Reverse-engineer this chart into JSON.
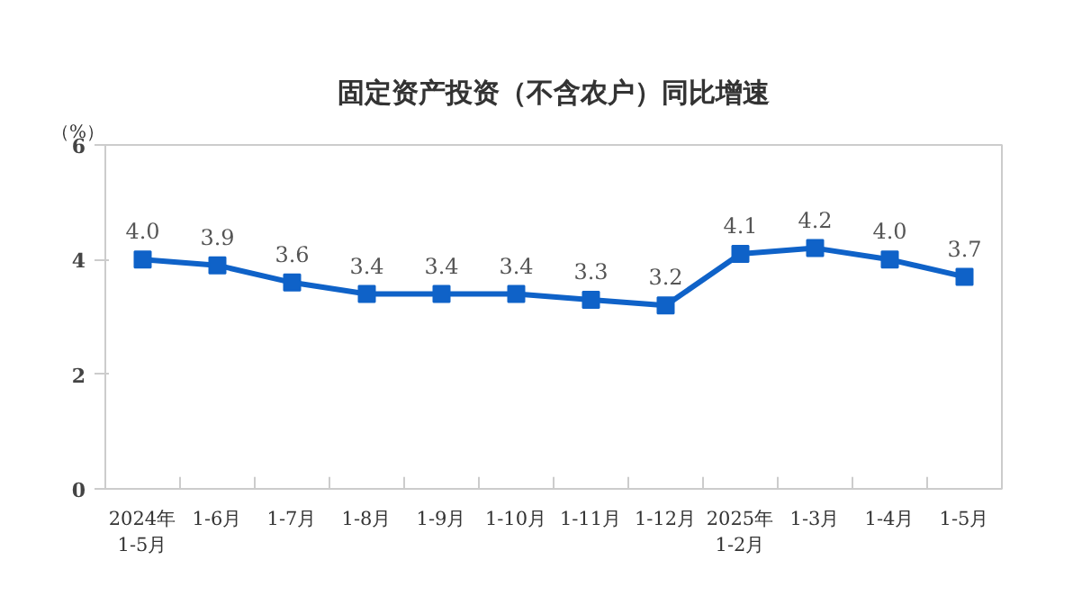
{
  "chart_data": {
    "type": "line",
    "title": "固定资产投资（不含农户）同比增速",
    "ylabel": "（%）",
    "categories": [
      "2024年\n1-5月",
      "1-6月",
      "1-7月",
      "1-8月",
      "1-9月",
      "1-10月",
      "1-11月",
      "1-12月",
      "2025年\n1-2月",
      "1-3月",
      "1-4月",
      "1-5月"
    ],
    "series": [
      {
        "color": "#0f62c8",
        "values": [
          4.0,
          3.9,
          3.6,
          3.4,
          3.4,
          3.4,
          3.3,
          3.2,
          4.1,
          4.2,
          4.0,
          3.7
        ],
        "value_labels": [
          "4.0",
          "3.9",
          "3.6",
          "3.4",
          "3.4",
          "3.4",
          "3.3",
          "3.2",
          "4.1",
          "4.2",
          "4.0",
          "3.7"
        ]
      }
    ],
    "ylim": [
      0,
      6
    ],
    "yticks": [
      0,
      2,
      4,
      6
    ],
    "grid": false,
    "marker": "square",
    "line_style": "solid"
  }
}
